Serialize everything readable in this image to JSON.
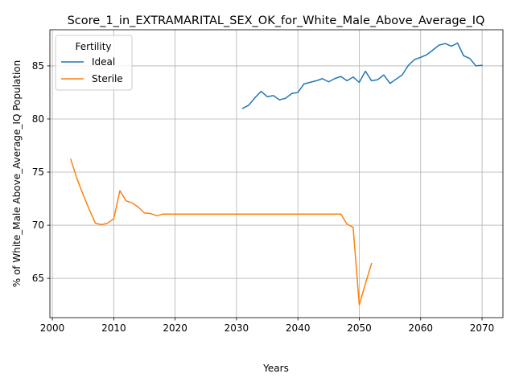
{
  "chart_data": {
    "type": "line",
    "title": "Score_1_in_EXTRAMARITAL_SEX_OK_for_White_Male_Above_Average_IQ",
    "xlabel": "Years",
    "ylabel": "% of White_Male Above_Average_IQ Population",
    "xlim": [
      1999.6,
      2073.4
    ],
    "ylim": [
      61.3,
      88.4
    ],
    "xticks": [
      2000,
      2010,
      2020,
      2030,
      2040,
      2050,
      2060,
      2070
    ],
    "yticks": [
      65,
      70,
      75,
      80,
      85
    ],
    "grid": true,
    "legend": {
      "title": "Fertility",
      "placement": "top-left"
    },
    "series": [
      {
        "name": "Ideal",
        "color": "#1f77b4",
        "x": [
          2031,
          2032,
          2033,
          2034,
          2035,
          2036,
          2037,
          2038,
          2039,
          2040,
          2041,
          2042,
          2043,
          2044,
          2045,
          2046,
          2047,
          2048,
          2049,
          2050,
          2051,
          2052,
          2053,
          2054,
          2055,
          2056,
          2057,
          2058,
          2059,
          2060,
          2061,
          2062,
          2063,
          2064,
          2065,
          2066,
          2067,
          2068,
          2069,
          2070
        ],
        "y": [
          81.0,
          81.3,
          82.0,
          82.6,
          82.1,
          82.2,
          81.8,
          81.95,
          82.4,
          82.5,
          83.3,
          83.45,
          83.6,
          83.8,
          83.5,
          83.8,
          84.0,
          83.6,
          83.95,
          83.45,
          84.5,
          83.6,
          83.7,
          84.15,
          83.35,
          83.75,
          84.15,
          85.05,
          85.6,
          85.8,
          86.05,
          86.5,
          86.95,
          87.1,
          86.85,
          87.15,
          85.95,
          85.7,
          85.0,
          85.05
        ]
      },
      {
        "name": "Sterile",
        "color": "#ff7f0e",
        "x": [
          2003,
          2004,
          2005,
          2006,
          2007,
          2008,
          2009,
          2010,
          2011,
          2012,
          2013,
          2014,
          2015,
          2016,
          2017,
          2018,
          2019,
          2020,
          2021,
          2022,
          2023,
          2024,
          2025,
          2026,
          2027,
          2028,
          2029,
          2030,
          2031,
          2032,
          2033,
          2034,
          2035,
          2036,
          2037,
          2038,
          2039,
          2040,
          2041,
          2042,
          2043,
          2044,
          2045,
          2046,
          2047,
          2048,
          2049,
          2050,
          2051,
          2052
        ],
        "y": [
          76.2,
          74.4,
          72.9,
          71.5,
          70.2,
          70.05,
          70.2,
          70.6,
          73.25,
          72.3,
          72.1,
          71.7,
          71.15,
          71.1,
          70.9,
          71.05,
          71.05,
          71.05,
          71.05,
          71.05,
          71.05,
          71.05,
          71.05,
          71.05,
          71.05,
          71.05,
          71.05,
          71.05,
          71.05,
          71.05,
          71.05,
          71.05,
          71.05,
          71.05,
          71.05,
          71.05,
          71.05,
          71.05,
          71.05,
          71.05,
          71.05,
          71.05,
          71.05,
          71.05,
          71.05,
          70.1,
          69.8,
          62.5,
          64.5,
          66.4
        ]
      }
    ]
  }
}
